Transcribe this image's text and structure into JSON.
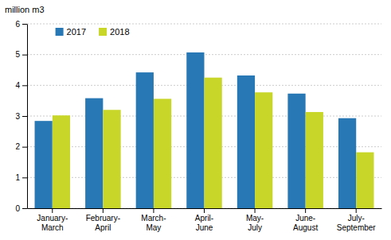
{
  "chart_data": {
    "type": "bar",
    "ylabel": "million m3",
    "categories": [
      "January-\nMarch",
      "February-\nApril",
      "March-\nMay",
      "April-\nJune",
      "May-\nJuly",
      "June-\nAugust",
      "July-\nSeptember"
    ],
    "series": [
      {
        "name": "2017",
        "color": "#2878b5",
        "values": [
          2.84,
          3.58,
          4.42,
          5.07,
          4.32,
          3.73,
          2.93
        ]
      },
      {
        "name": "2018",
        "color": "#c8d629",
        "values": [
          3.02,
          3.2,
          3.56,
          4.25,
          3.77,
          3.13,
          1.82
        ]
      }
    ],
    "ylim": [
      0,
      6
    ],
    "yticks": [
      0,
      1,
      2,
      3,
      4,
      5,
      6
    ],
    "grid": true,
    "legend": "upper left"
  }
}
